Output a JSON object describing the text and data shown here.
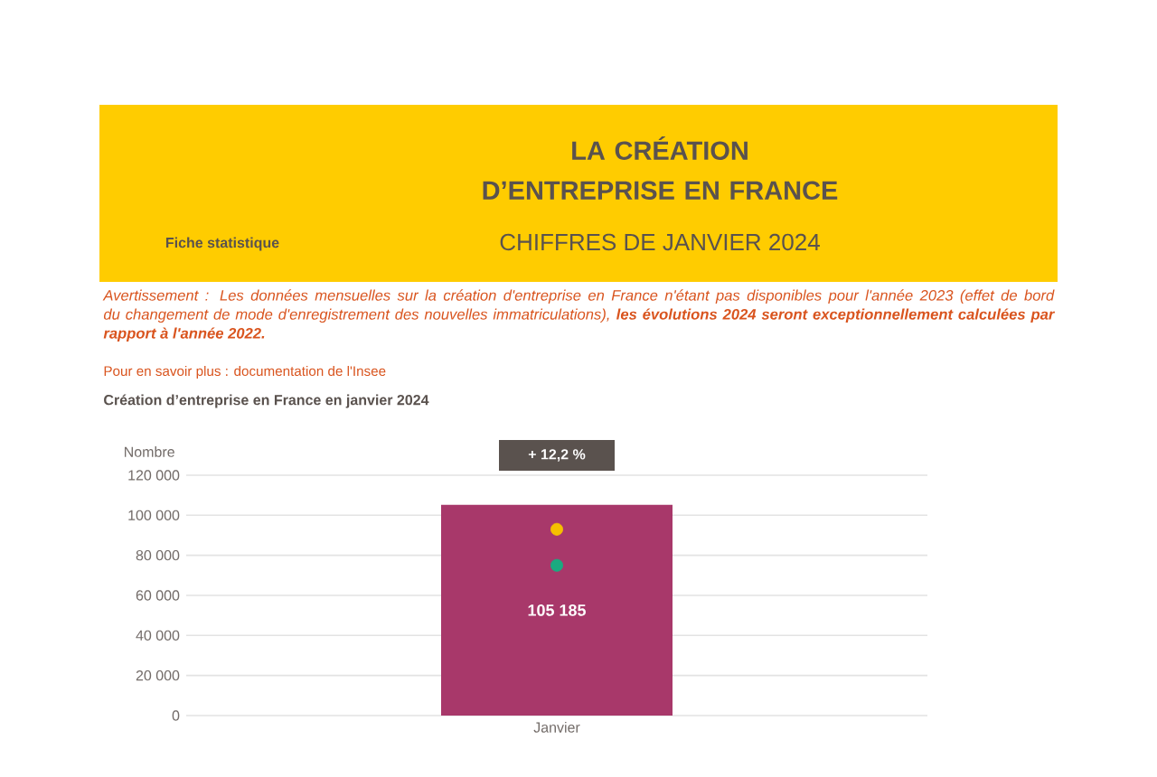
{
  "chart_data": {
    "type": "bar",
    "title": "LA CRÉATION D’ENTREPRISE EN FRANCE",
    "subtitle": "CHIFFRES DE JANVIER 2024",
    "ylabel": "Nombre",
    "categories": [
      "Janvier"
    ],
    "series": [
      {
        "color": "#a8386a",
        "values": [
          105185
        ],
        "value_labels": [
          "105 185"
        ]
      },
      {
        "type": "scatter",
        "color": "#f5c000",
        "x": [
          "Janvier"
        ],
        "values": [
          93000
        ]
      },
      {
        "type": "scatter",
        "color": "#1aaa80",
        "x": [
          "Janvier"
        ],
        "values": [
          75000
        ]
      }
    ],
    "ylim": [
      0,
      120000
    ],
    "yticks": [
      0,
      {
        "value": 20000,
        "label": "20 000"
      },
      {
        "value": 40000,
        "label": "40 000"
      },
      {
        "value": 60000,
        "label": "60 000"
      },
      {
        "value": 80000,
        "label": "80 000"
      },
      {
        "value": 100000,
        "label": "100 000"
      },
      {
        "value": 120000,
        "label": "120 000"
      }
    ],
    "grid": "y",
    "marker": "circle",
    "annotations": [
      "Fiche statistique",
      "Avertissement : Les données mensuelles sur la création d'entreprise en France n'étant pas disponibles pour l'année 2023 (effet de bord du changement de mode d'enregistrement des nouvelles immatriculations), **les évolutions 2024 seront exceptionnellement calculées par rapport à l'année 2022.**",
      "Pour en savoir plus : documentation de l'Insee",
      "Création d’entreprise en France en janvier 2024",
      "+ 12,2 %"
    ]
  }
}
